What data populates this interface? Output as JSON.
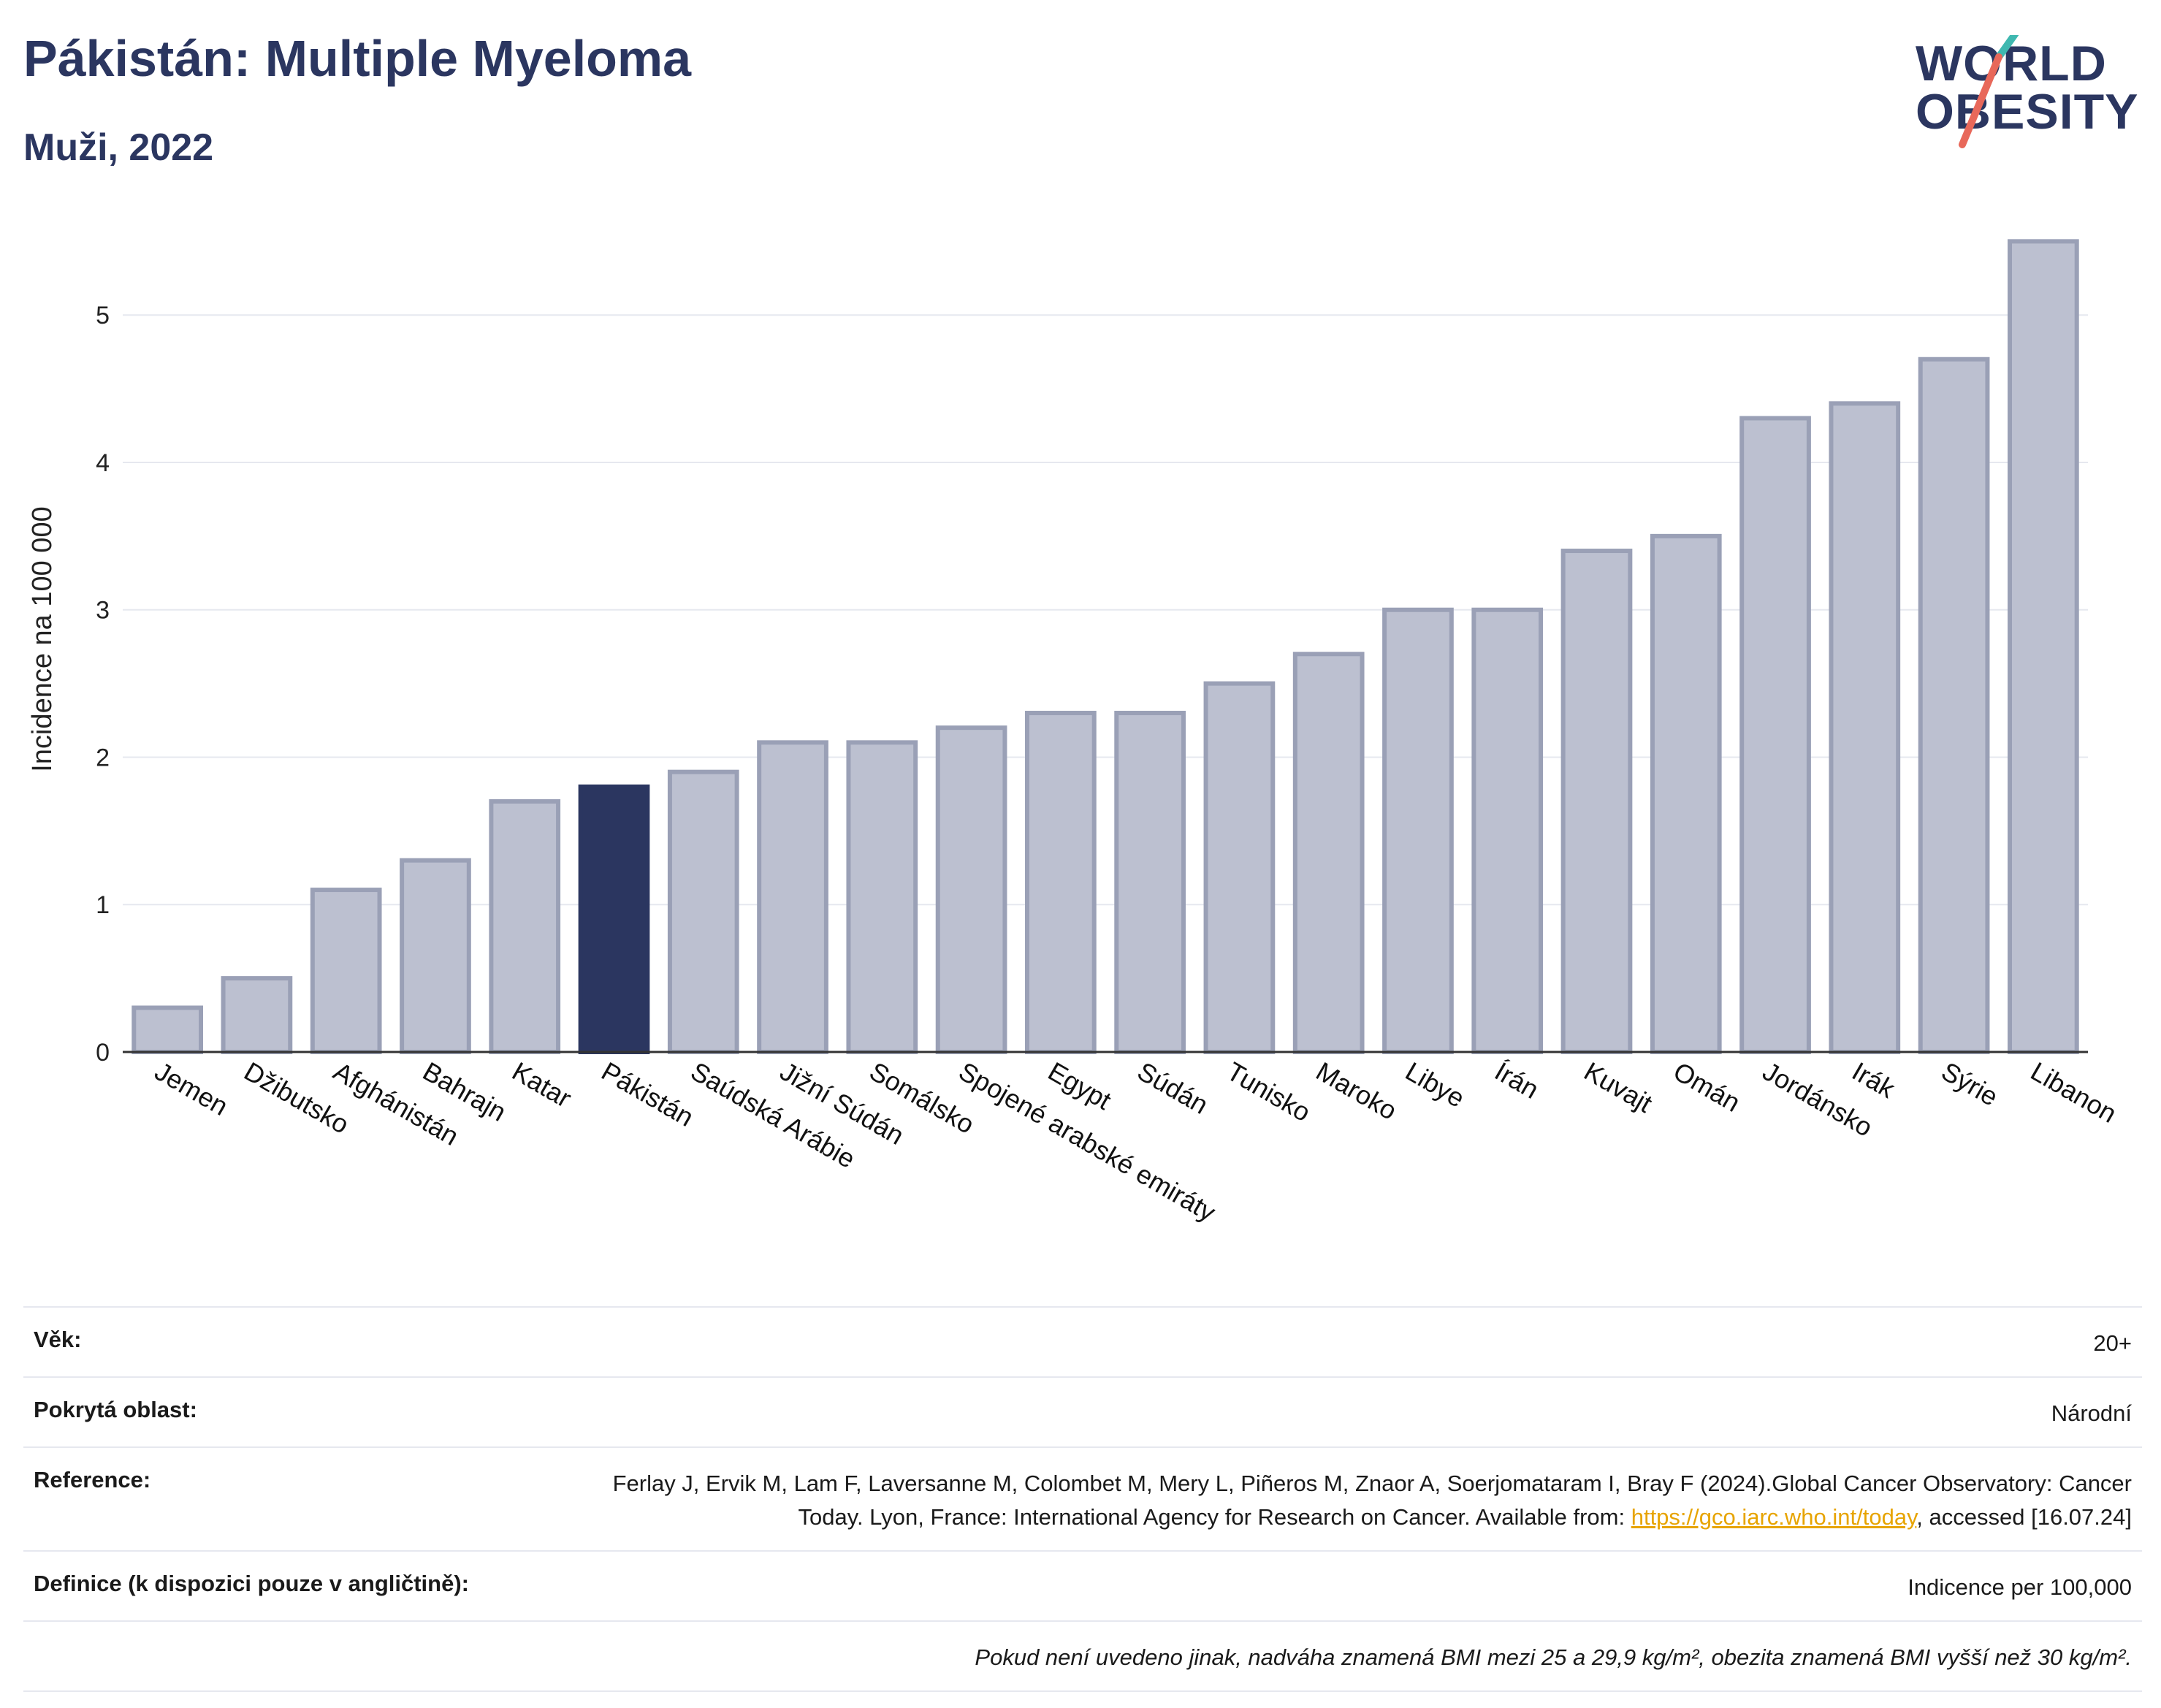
{
  "header": {
    "title": "Pákistán: Multiple Myeloma",
    "subtitle": "Muži, 2022"
  },
  "logo": {
    "line1": "WORLD",
    "line2": "OBESITY",
    "colors": {
      "text": "#2b3660",
      "slash_top": "#3fb8b0",
      "slash_bottom": "#e8685a"
    }
  },
  "colors": {
    "bar": "#bcc0d0",
    "bar_stroke": "#9aa0b6",
    "highlight": "#2b3660",
    "grid": "#e6e8ef",
    "axis": "#333333"
  },
  "chart_data": {
    "type": "bar",
    "title": "Pákistán: Multiple Myeloma",
    "subtitle": "Muži, 2022",
    "xlabel": "",
    "ylabel": "Incidence na 100 000",
    "ylim": [
      0,
      5.7
    ],
    "yticks": [
      0,
      1,
      2,
      3,
      4,
      5
    ],
    "grid": true,
    "highlight_category": "Pákistán",
    "categories": [
      "Jemen",
      "Džibutsko",
      "Afghánistán",
      "Bahrajn",
      "Katar",
      "Pákistán",
      "Saúdská Arábie",
      "Jižní Súdán",
      "Somálsko",
      "Spojené arabské emiráty",
      "Egypt",
      "Súdán",
      "Tunisko",
      "Maroko",
      "Libye",
      "Írán",
      "Kuvajt",
      "Omán",
      "Jordánsko",
      "Irák",
      "Sýrie",
      "Libanon"
    ],
    "values": [
      0.3,
      0.5,
      1.1,
      1.3,
      1.7,
      1.8,
      1.9,
      2.1,
      2.1,
      2.2,
      2.3,
      2.3,
      2.5,
      2.7,
      3.0,
      3.0,
      3.4,
      3.5,
      4.3,
      4.4,
      4.7,
      5.5
    ]
  },
  "meta": {
    "rows": [
      {
        "label": "Věk:",
        "value": "20+"
      },
      {
        "label": "Pokrytá oblast:",
        "value": "Národní"
      },
      {
        "label": "Reference:",
        "value": "Ferlay J, Ervik M, Lam F, Laversanne M, Colombet M, Mery L, Piñeros M, Znaor A, Soerjomataram I, Bray F (2024).Global Cancer Observatory: Cancer Today. Lyon, France: International Agency for Research on Cancer. Available from: ",
        "link": "https://gco.iarc.who.int/today",
        "value_after": ", accessed [16.07.24]"
      },
      {
        "label": "Definice (k dispozici pouze v angličtině):",
        "value": "Indicence per 100,000"
      }
    ],
    "note": "Pokud není uvedeno jinak, nadváha znamená BMI mezi 25 a 29,9 kg/m², obezita znamená BMI vyšší než 30 kg/m²."
  }
}
